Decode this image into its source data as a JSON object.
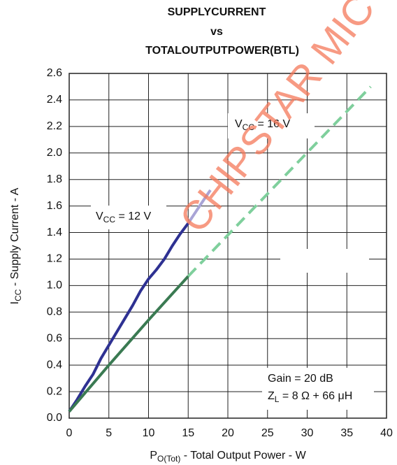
{
  "chart_data": {
    "type": "line",
    "title": [
      "SUPPLYCURRENT",
      "vs",
      "TOTALOUTPUTPOWER(BTL)"
    ],
    "watermark": "CHIPSTAR MIC",
    "x_label": [
      "P",
      "O(Tot)",
      " - Total Output Power - W"
    ],
    "y_label": [
      "I",
      "CC",
      " - Supply Current - A"
    ],
    "xlim": [
      0,
      40
    ],
    "ylim": [
      0,
      2.6
    ],
    "xticks": [
      0,
      5,
      10,
      15,
      20,
      25,
      30,
      35,
      40
    ],
    "yticks": [
      {
        "value": 0,
        "label": "0.0"
      },
      0.2,
      0.4,
      0.6,
      0.8,
      {
        "value": 1,
        "label": "1.0"
      },
      1.2,
      1.4,
      1.6,
      1.8,
      {
        "value": 2,
        "label": "2.0"
      },
      2.2,
      2.4,
      2.6
    ],
    "grid": true,
    "series": [
      {
        "color": "#2e3192",
        "dashed": false,
        "x": [
          0,
          1,
          2,
          3,
          4,
          5,
          6,
          7,
          8,
          9,
          10,
          11,
          12,
          13,
          14,
          15
        ],
        "values": [
          0.05,
          0.14,
          0.24,
          0.33,
          0.45,
          0.55,
          0.65,
          0.75,
          0.85,
          0.96,
          1.05,
          1.12,
          1.2,
          1.3,
          1.39,
          1.47
        ]
      },
      {
        "color": "#a9a4d6",
        "dashed": false,
        "x": [
          15,
          16,
          17,
          17.8
        ],
        "values": [
          1.47,
          1.56,
          1.65,
          1.72
        ]
      },
      {
        "color": "#3a7a52",
        "dashed": false,
        "x": [
          0,
          5,
          10,
          15
        ],
        "values": [
          0.05,
          0.4,
          0.74,
          1.07
        ]
      },
      {
        "color": "#7fcf9c",
        "dashed": true,
        "x": [
          15,
          38
        ],
        "values": [
          1.07,
          2.5
        ]
      }
    ],
    "annotations": [
      {
        "parts": [
          "V",
          "CC",
          " = 16 V"
        ]
      },
      {
        "parts": [
          "V",
          "CC",
          " = 12 V"
        ]
      },
      {
        "parts": [
          "Gain = 20 dB"
        ]
      },
      {
        "parts": [
          "Z",
          "L",
          " = 8 Ω + 66 μH"
        ]
      }
    ]
  }
}
